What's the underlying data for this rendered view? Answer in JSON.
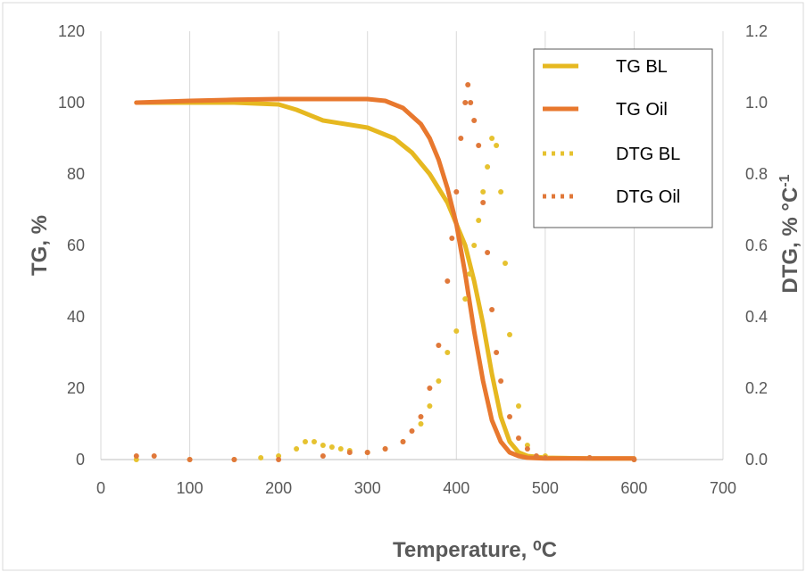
{
  "chart_data": {
    "type": "line",
    "xlabel": "Temperature, ⁰C",
    "ylabel_left": "TG, %",
    "ylabel_right": "DTG, % °C",
    "ylabel_right_superscript": "-1",
    "xlim": [
      0,
      700
    ],
    "ylim_left": [
      0,
      120
    ],
    "ylim_right": [
      0.0,
      1.2
    ],
    "x_ticks": [
      "0",
      "100",
      "200",
      "300",
      "400",
      "500",
      "600",
      "700"
    ],
    "y_ticks_left": [
      "0",
      "20",
      "40",
      "60",
      "80",
      "100",
      "120"
    ],
    "y_ticks_right": [
      "0.0",
      "0.2",
      "0.4",
      "0.6",
      "0.8",
      "1.0",
      "1.2"
    ],
    "grid": "vertical",
    "legend_position": "top-right",
    "series": [
      {
        "name": "TG BL",
        "axis": "left",
        "style": "solid",
        "color": "#E6B820",
        "x": [
          40,
          100,
          150,
          200,
          220,
          250,
          300,
          330,
          350,
          370,
          390,
          400,
          410,
          420,
          430,
          440,
          450,
          460,
          470,
          480,
          500,
          550,
          600
        ],
        "y": [
          100,
          100,
          100,
          99.5,
          98,
          95,
          93,
          90,
          86,
          80,
          72,
          66,
          60,
          50,
          38,
          24,
          12,
          5,
          2,
          1,
          0.5,
          0.3,
          0.3
        ]
      },
      {
        "name": "TG Oil",
        "axis": "left",
        "style": "solid",
        "color": "#E8782E",
        "x": [
          40,
          100,
          150,
          200,
          250,
          300,
          320,
          340,
          360,
          370,
          380,
          390,
          400,
          410,
          420,
          430,
          440,
          450,
          460,
          470,
          480,
          500,
          550,
          600
        ],
        "y": [
          100,
          100.5,
          100.8,
          101,
          101,
          101,
          100.5,
          98.5,
          94,
          90,
          84,
          76,
          66,
          52,
          36,
          22,
          11,
          5,
          2,
          1,
          0.5,
          0.3,
          0.3,
          0.3
        ]
      },
      {
        "name": "DTG BL",
        "axis": "right",
        "style": "dotted",
        "color": "#E6C230",
        "x": [
          40,
          100,
          150,
          180,
          200,
          220,
          230,
          240,
          250,
          260,
          270,
          280,
          300,
          320,
          340,
          360,
          370,
          380,
          390,
          400,
          410,
          415,
          420,
          425,
          430,
          435,
          440,
          445,
          450,
          455,
          460,
          470,
          480,
          500,
          550,
          600
        ],
        "y": [
          0.0,
          0.0,
          0.0,
          0.005,
          0.01,
          0.03,
          0.05,
          0.05,
          0.04,
          0.035,
          0.03,
          0.025,
          0.02,
          0.03,
          0.05,
          0.1,
          0.15,
          0.22,
          0.3,
          0.36,
          0.45,
          0.52,
          0.6,
          0.67,
          0.75,
          0.82,
          0.9,
          0.88,
          0.75,
          0.55,
          0.35,
          0.15,
          0.04,
          0.01,
          0.005,
          0.0
        ]
      },
      {
        "name": "DTG Oil",
        "axis": "right",
        "style": "dotted",
        "color": "#E0783A",
        "x": [
          40,
          60,
          100,
          150,
          200,
          250,
          280,
          300,
          320,
          340,
          350,
          360,
          370,
          380,
          390,
          395,
          400,
          405,
          410,
          413,
          416,
          420,
          425,
          430,
          435,
          440,
          445,
          450,
          460,
          470,
          480,
          490,
          500,
          550,
          600
        ],
        "y": [
          0.01,
          0.01,
          0.0,
          0.0,
          0.0,
          0.01,
          0.02,
          0.02,
          0.03,
          0.05,
          0.08,
          0.12,
          0.2,
          0.32,
          0.5,
          0.62,
          0.75,
          0.9,
          1.0,
          1.05,
          1.0,
          0.95,
          0.88,
          0.72,
          0.58,
          0.42,
          0.3,
          0.22,
          0.12,
          0.06,
          0.03,
          0.01,
          0.005,
          0.005,
          0.0
        ]
      }
    ]
  }
}
